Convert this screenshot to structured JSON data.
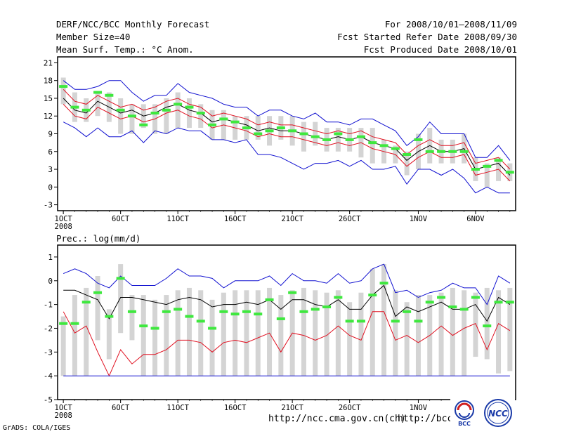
{
  "header": {
    "title": "DERF/NCC/BCC Monthly Forecast",
    "member_size": "Member Size=40",
    "variable": "Mean Surf. Temp.: °C Anom.",
    "period": "For 2008/10/01—2008/11/09",
    "started": "Fcst Started Refer Date 2008/09/30",
    "produced": "Fcst Produced Date 2008/10/01"
  },
  "footer": {
    "grads": "GrADS: COLA/IGES",
    "url1": "http://ncc.cma.gov.cn(ch)",
    "url2": "http://bcc.c",
    "logo1": "BCC",
    "logo2": "NCC"
  },
  "colors": {
    "box": "#d4d4d4",
    "median": "#3ee83e",
    "mean": "#000000",
    "inner": "#e01020",
    "outer": "#1010d0"
  },
  "chart_data": [
    {
      "type": "line",
      "title": "Mean Surf. Temp.: °C Anom.",
      "ylim": [
        -4,
        22
      ],
      "yticks": [
        21,
        18,
        15,
        12,
        9,
        6,
        3,
        0,
        -3
      ],
      "xlim": [
        0.5,
        40.5
      ],
      "xticks": [
        {
          "x": 1,
          "label": "1OCT",
          "sub": "2008"
        },
        {
          "x": 6,
          "label": "6OCT"
        },
        {
          "x": 11,
          "label": "11OCT"
        },
        {
          "x": 16,
          "label": "16OCT"
        },
        {
          "x": 21,
          "label": "21OCT"
        },
        {
          "x": 26,
          "label": "26OCT"
        },
        {
          "x": 32,
          "label": "1NOV"
        },
        {
          "x": 37,
          "label": "6NOV"
        }
      ],
      "x": [
        1,
        2,
        3,
        4,
        5,
        6,
        7,
        8,
        9,
        10,
        11,
        12,
        13,
        14,
        15,
        16,
        17,
        18,
        19,
        20,
        21,
        22,
        23,
        24,
        25,
        26,
        27,
        28,
        29,
        30,
        31,
        32,
        33,
        34,
        35,
        36,
        37,
        38,
        39,
        40
      ],
      "box_low": [
        14,
        11,
        11,
        12,
        11,
        9,
        9,
        10,
        9,
        9,
        10,
        10,
        10,
        8,
        8,
        8,
        8,
        8,
        7,
        8,
        7,
        6,
        7,
        6,
        6,
        6,
        5,
        4,
        4,
        4,
        2,
        3,
        4,
        4,
        4,
        4,
        1,
        0,
        1,
        1
      ],
      "box_high": [
        18.5,
        16,
        15,
        16,
        16,
        15,
        14,
        14,
        14,
        15,
        16,
        15,
        14,
        13,
        13,
        12,
        12,
        12,
        12,
        12,
        12,
        11,
        11,
        10,
        10,
        10,
        10,
        10,
        8,
        7,
        6,
        9,
        10,
        8,
        8,
        9,
        5,
        4,
        5,
        4
      ],
      "medians": [
        17,
        13.5,
        13,
        16,
        15.5,
        13,
        12,
        10.5,
        12.5,
        13,
        14,
        13.5,
        12.5,
        10.5,
        11.5,
        11,
        10,
        9,
        9.5,
        10,
        9.5,
        9,
        8.5,
        8,
        9,
        8,
        8.5,
        7.5,
        7,
        6.5,
        5.5,
        8,
        6,
        6,
        6,
        6,
        3,
        3.5,
        4.5,
        2.5
      ],
      "series": [
        {
          "name": "mean",
          "values": [
            15,
            13,
            12.5,
            14.5,
            13.5,
            12.5,
            13,
            12,
            12.5,
            13.5,
            14,
            13,
            12.5,
            11,
            11.5,
            11,
            10.5,
            9.5,
            10,
            9.5,
            9.5,
            9,
            8.5,
            8,
            8.5,
            8,
            8.5,
            7.5,
            7,
            6.5,
            4.5,
            6,
            7,
            6,
            6,
            6.5,
            3,
            3.5,
            4,
            2
          ]
        },
        {
          "name": "upper_inner",
          "values": [
            16.5,
            14.5,
            14,
            15.5,
            14.5,
            13.5,
            14,
            13,
            13.5,
            14.5,
            15,
            14,
            13.5,
            12,
            12.5,
            12,
            11.5,
            10.5,
            11,
            10.5,
            10.5,
            10,
            9.5,
            9,
            9.5,
            9,
            9.5,
            8.5,
            8,
            7.5,
            5.5,
            7,
            8,
            7,
            7,
            7.5,
            4,
            4.5,
            5,
            3
          ]
        },
        {
          "name": "lower_inner",
          "values": [
            14,
            12,
            11.5,
            13.5,
            12.5,
            11.5,
            12,
            11,
            11.5,
            12.5,
            13,
            12,
            11.5,
            10,
            10.5,
            10,
            9.5,
            8.5,
            9,
            8.5,
            8.5,
            8,
            7.5,
            7,
            7.5,
            7,
            7.5,
            6.5,
            6,
            5.5,
            3.5,
            5,
            6,
            5,
            5,
            5.5,
            2,
            2.5,
            3,
            1
          ]
        },
        {
          "name": "upper_outer",
          "values": [
            18,
            16.5,
            16.5,
            17,
            18,
            18,
            16,
            14.5,
            15.5,
            15.5,
            17.5,
            16,
            15.5,
            15,
            14,
            13.5,
            13.5,
            12,
            13,
            13,
            12,
            11.5,
            12.5,
            11,
            11,
            10.5,
            11.5,
            11.5,
            10.5,
            9.5,
            7,
            8.5,
            11,
            9,
            9,
            9,
            5,
            5,
            7,
            4.5
          ]
        },
        {
          "name": "lower_outer",
          "values": [
            11,
            10,
            8.5,
            10,
            8.5,
            8.5,
            9.5,
            7.5,
            9.5,
            9,
            10,
            9.5,
            9.5,
            8,
            8,
            7.5,
            8,
            5.5,
            5.5,
            5,
            4,
            3,
            4,
            4,
            4.5,
            3.5,
            4.5,
            3,
            3,
            3.5,
            0.5,
            3,
            3,
            2,
            3,
            1.5,
            -1,
            0,
            -1,
            -1
          ]
        }
      ]
    },
    {
      "type": "line",
      "title": "Prec.: log(mm/d)",
      "ylim": [
        -5,
        1.5
      ],
      "yticks": [
        1,
        0,
        -1,
        -2,
        -3,
        -4,
        -5
      ],
      "xlim": [
        0.5,
        40.5
      ],
      "xticks": [
        {
          "x": 1,
          "label": "1OCT",
          "sub": "2008"
        },
        {
          "x": 6,
          "label": "6OCT"
        },
        {
          "x": 11,
          "label": "11OCT"
        },
        {
          "x": 16,
          "label": "16OCT"
        },
        {
          "x": 21,
          "label": "21OCT"
        },
        {
          "x": 26,
          "label": "26OCT"
        },
        {
          "x": 32,
          "label": "1NOV"
        },
        {
          "x": 37,
          "label": "6NOV"
        }
      ],
      "x": [
        1,
        2,
        3,
        4,
        5,
        6,
        7,
        8,
        9,
        10,
        11,
        12,
        13,
        14,
        15,
        16,
        17,
        18,
        19,
        20,
        21,
        22,
        23,
        24,
        25,
        26,
        27,
        28,
        29,
        30,
        31,
        32,
        33,
        34,
        35,
        36,
        37,
        38,
        39,
        40
      ],
      "box_low": [
        -4,
        -4,
        -4,
        -2.5,
        -3.3,
        -2.2,
        -2.5,
        -4,
        -4,
        -4,
        -4,
        -4,
        -4,
        -4,
        -4,
        -4,
        -4,
        -4,
        -4,
        -4,
        -4,
        -4,
        -4,
        -4,
        -4,
        -4,
        -4,
        -4,
        -4,
        -4,
        -4,
        -4,
        -4,
        -4,
        -4,
        -4,
        -3.2,
        -3.3,
        -3.9,
        -3.8
      ],
      "box_high": [
        -1.5,
        -0.6,
        -0.3,
        0.2,
        -1.2,
        0.7,
        -0.6,
        -0.6,
        -0.8,
        -0.6,
        -0.4,
        -0.3,
        -0.4,
        -0.8,
        -0.5,
        -0.4,
        -0.4,
        -0.4,
        -0.3,
        -0.6,
        -0.4,
        -0.3,
        -0.4,
        -0.5,
        -0.4,
        -0.9,
        -0.5,
        0.5,
        0.7,
        -0.4,
        -0.9,
        -0.6,
        -0.6,
        -0.5,
        -0.3,
        -0.4,
        -0.5,
        -0.3,
        -0.4,
        -0.3
      ],
      "medians": [
        -1.8,
        -1.8,
        -0.9,
        -0.5,
        -1.5,
        0.1,
        -1.3,
        -1.9,
        -2.0,
        -1.3,
        -1.2,
        -1.5,
        -1.7,
        -2.0,
        -1.3,
        -1.4,
        -1.3,
        -1.4,
        -0.8,
        -1.6,
        -0.5,
        -1.3,
        -1.2,
        -1.1,
        -0.7,
        -1.7,
        -1.7,
        -0.6,
        -0.1,
        -1.7,
        -1.3,
        -1.7,
        -0.9,
        -0.7,
        -1.1,
        -1.2,
        -0.7,
        -1.9,
        -0.9,
        -0.9
      ],
      "series": [
        {
          "name": "mean",
          "values": [
            -0.4,
            -0.4,
            -0.6,
            -0.8,
            -1.6,
            -0.7,
            -0.7,
            -0.8,
            -0.9,
            -1.0,
            -0.8,
            -0.7,
            -0.8,
            -1.1,
            -1.0,
            -1.0,
            -0.9,
            -1.0,
            -0.8,
            -1.2,
            -0.8,
            -0.8,
            -1.0,
            -1.1,
            -0.8,
            -1.2,
            -1.2,
            -0.6,
            -0.2,
            -1.5,
            -1.1,
            -1.3,
            -1.1,
            -0.9,
            -1.2,
            -1.2,
            -1.0,
            -1.7,
            -0.7,
            -1.0
          ]
        },
        {
          "name": "upper_outer",
          "values": [
            0.3,
            0.5,
            0.3,
            -0.1,
            -0.3,
            0.2,
            -0.2,
            -0.2,
            -0.2,
            0.1,
            0.5,
            0.2,
            0.2,
            0.1,
            -0.3,
            0.0,
            0.0,
            0.0,
            0.2,
            -0.2,
            0.3,
            0.0,
            0.0,
            -0.1,
            0.3,
            -0.1,
            0.0,
            0.5,
            0.7,
            -0.5,
            -0.4,
            -0.7,
            -0.5,
            -0.4,
            -0.1,
            -0.3,
            -0.3,
            -1.0,
            0.2,
            -0.1
          ]
        },
        {
          "name": "lower_inner",
          "values": [
            -1.3,
            -2.2,
            -1.9,
            -3.0,
            -4.0,
            -2.9,
            -3.5,
            -3.1,
            -3.1,
            -2.9,
            -2.5,
            -2.5,
            -2.6,
            -3.0,
            -2.6,
            -2.5,
            -2.6,
            -2.4,
            -2.2,
            -3.0,
            -2.2,
            -2.3,
            -2.5,
            -2.3,
            -1.9,
            -2.3,
            -2.5,
            -1.3,
            -1.3,
            -2.5,
            -2.3,
            -2.6,
            -2.3,
            -1.9,
            -2.3,
            -2.0,
            -1.8,
            -2.9,
            -1.8,
            -2.1
          ]
        },
        {
          "name": "lower_outer",
          "values": [
            -4,
            -4,
            -4,
            -4,
            -4,
            -4,
            -4,
            -4,
            -4,
            -4,
            -4,
            -4,
            -4,
            -4,
            -4,
            -4,
            -4,
            -4,
            -4,
            -4,
            -4,
            -4,
            -4,
            -4,
            -4,
            -4,
            -4,
            -4,
            -4,
            -4,
            -4,
            -4,
            -4,
            -4,
            -4,
            -4,
            -4,
            -4,
            -4,
            -4
          ]
        }
      ]
    }
  ]
}
